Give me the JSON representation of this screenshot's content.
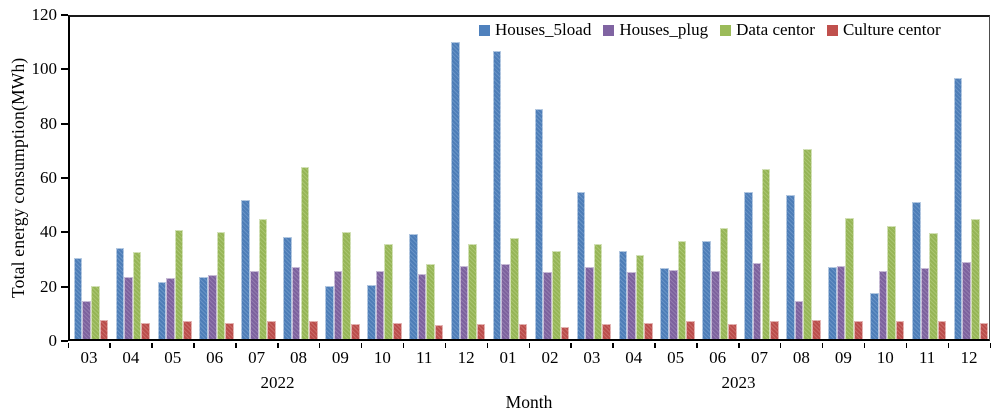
{
  "figure": {
    "background": "#ffffff",
    "axis_color": "#000000",
    "text_color": "#000000"
  },
  "chart_data": {
    "type": "bar",
    "title": "",
    "ylabel": "Total energy consumption(MWh)",
    "xlabel": "Month",
    "ylim": [
      0,
      120
    ],
    "yticks": [
      0,
      20,
      40,
      60,
      80,
      100,
      120
    ],
    "grid": false,
    "legend_position": "top-right-inside",
    "categories": [
      "03",
      "04",
      "05",
      "06",
      "07",
      "08",
      "09",
      "10",
      "11",
      "12",
      "01",
      "02",
      "03",
      "04",
      "05",
      "06",
      "07",
      "08",
      "09",
      "10",
      "11",
      "12"
    ],
    "year_groups": [
      {
        "label": "2022",
        "start": 0,
        "count": 10
      },
      {
        "label": "2023",
        "start": 10,
        "count": 12
      }
    ],
    "series": [
      {
        "name": "Houses_5load",
        "color": "#4F81BD",
        "values": [
          30,
          33.5,
          21,
          23,
          51,
          37.5,
          19.5,
          20,
          38.5,
          109.5,
          106,
          84.5,
          54,
          32.5,
          26,
          36,
          54,
          53,
          26.5,
          17,
          50.5,
          96
        ]
      },
      {
        "name": "Houses_plug",
        "color": "#8064A2",
        "values": [
          14,
          23,
          22.5,
          23.5,
          25,
          26.5,
          25,
          25,
          24,
          27,
          27.5,
          24.5,
          26.5,
          24.5,
          25.5,
          25,
          28,
          14,
          27,
          25,
          26,
          28.5
        ]
      },
      {
        "name": "Data centor",
        "color": "#9BBB59",
        "values": [
          19.5,
          32,
          40,
          39.5,
          44,
          63.5,
          39.5,
          35,
          27.5,
          35,
          37,
          32.5,
          35,
          31,
          36,
          41,
          62.5,
          70,
          44.5,
          41.5,
          39,
          44
        ]
      },
      {
        "name": "Culture centor",
        "color": "#C0504D",
        "values": [
          7,
          6,
          6.5,
          6,
          6.5,
          6.5,
          5.5,
          6,
          5,
          5.5,
          5.5,
          4.5,
          5.5,
          6,
          6.5,
          5.5,
          6.5,
          7,
          6.5,
          6.5,
          6.5,
          6
        ]
      }
    ]
  }
}
